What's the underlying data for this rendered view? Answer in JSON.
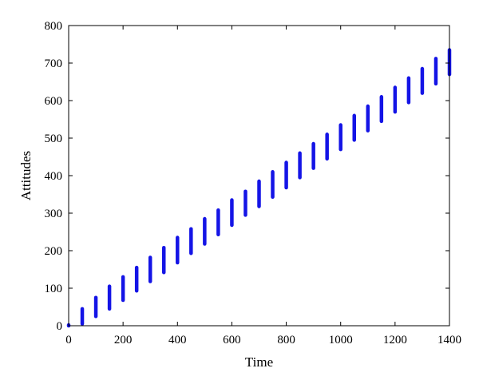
{
  "chart_data": {
    "type": "bar",
    "xlabel": "Time",
    "ylabel": "Attitudes",
    "xlim": [
      0,
      1400
    ],
    "ylim": [
      0,
      800
    ],
    "xticks": [
      0,
      200,
      400,
      600,
      800,
      1000,
      1200,
      1400
    ],
    "yticks": [
      0,
      100,
      200,
      300,
      400,
      500,
      600,
      700,
      800
    ],
    "grid": false,
    "series_color": "#1414e6",
    "ranges": [
      {
        "x": 0,
        "low": 0,
        "high": 2
      },
      {
        "x": 50,
        "low": 5,
        "high": 45
      },
      {
        "x": 100,
        "low": 25,
        "high": 75
      },
      {
        "x": 150,
        "low": 45,
        "high": 105
      },
      {
        "x": 200,
        "low": 68,
        "high": 130
      },
      {
        "x": 250,
        "low": 93,
        "high": 155
      },
      {
        "x": 300,
        "low": 118,
        "high": 182
      },
      {
        "x": 350,
        "low": 142,
        "high": 208
      },
      {
        "x": 400,
        "low": 168,
        "high": 235
      },
      {
        "x": 450,
        "low": 193,
        "high": 258
      },
      {
        "x": 500,
        "low": 218,
        "high": 285
      },
      {
        "x": 550,
        "low": 243,
        "high": 308
      },
      {
        "x": 600,
        "low": 268,
        "high": 335
      },
      {
        "x": 650,
        "low": 295,
        "high": 358
      },
      {
        "x": 700,
        "low": 318,
        "high": 385
      },
      {
        "x": 750,
        "low": 343,
        "high": 410
      },
      {
        "x": 800,
        "low": 368,
        "high": 435
      },
      {
        "x": 850,
        "low": 395,
        "high": 460
      },
      {
        "x": 900,
        "low": 420,
        "high": 485
      },
      {
        "x": 950,
        "low": 445,
        "high": 510
      },
      {
        "x": 1000,
        "low": 470,
        "high": 535
      },
      {
        "x": 1050,
        "low": 495,
        "high": 560
      },
      {
        "x": 1100,
        "low": 520,
        "high": 585
      },
      {
        "x": 1150,
        "low": 545,
        "high": 610
      },
      {
        "x": 1200,
        "low": 570,
        "high": 635
      },
      {
        "x": 1250,
        "low": 595,
        "high": 660
      },
      {
        "x": 1300,
        "low": 620,
        "high": 685
      },
      {
        "x": 1350,
        "low": 645,
        "high": 712
      },
      {
        "x": 1400,
        "low": 670,
        "high": 735
      }
    ]
  }
}
